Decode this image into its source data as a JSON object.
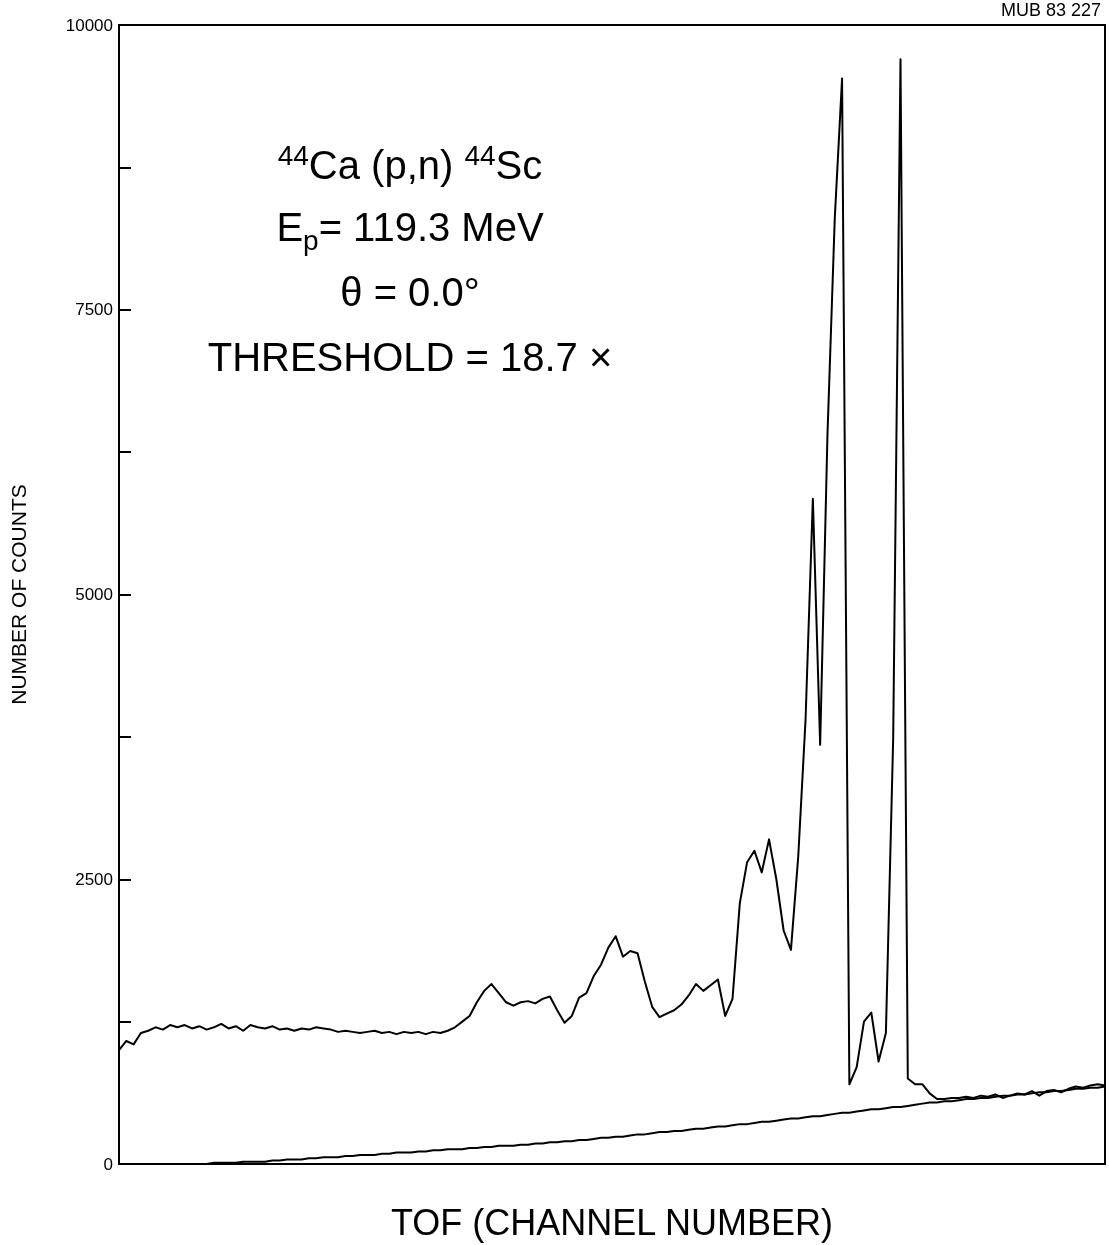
{
  "chart_data": {
    "type": "line",
    "xlabel": "TOF (CHANNEL NUMBER)",
    "ylabel": "NUMBER OF COUNTS",
    "annotations": [
      "$^{44}$Ca (p,n) $^{44}$Sc",
      "E$_{p}$= 119.3 MeV",
      "θ = 0.0°",
      "THRESHOLD = 18.7 ×",
      "MUB 83 227"
    ],
    "categories": [
      null,
      null,
      null,
      null,
      null,
      null,
      null,
      null,
      null,
      null,
      null,
      null,
      null,
      null,
      null,
      null,
      null,
      null,
      null,
      null,
      null,
      null,
      null,
      null,
      null,
      null,
      null,
      null,
      null,
      null,
      null,
      null,
      null,
      null,
      null,
      null,
      null,
      null,
      null,
      null,
      null,
      null,
      null,
      null,
      null,
      null,
      null,
      null,
      null,
      null,
      null,
      null,
      null,
      null,
      null,
      null,
      null,
      null,
      null,
      null,
      null,
      null,
      null,
      null,
      null,
      null,
      null,
      null,
      null,
      null,
      null,
      null,
      null,
      null,
      null,
      null,
      null,
      null,
      null,
      null,
      null,
      null,
      null,
      null,
      null,
      null,
      null,
      null,
      null,
      null,
      null,
      null,
      null,
      null,
      null,
      null,
      null,
      null,
      null,
      null,
      null,
      null,
      null,
      null,
      null,
      null,
      null,
      null,
      null,
      null,
      null,
      null,
      null,
      null,
      null,
      null,
      null,
      null,
      null,
      null,
      null,
      null,
      null,
      null,
      null,
      null,
      null,
      null,
      null,
      null,
      null,
      null,
      null,
      null,
      null,
      null
    ],
    "series": [
      {
        "color": "#000000",
        "values": [
          1000,
          1080,
          1050,
          1150,
          1170,
          1200,
          1180,
          1220,
          1200,
          1220,
          1190,
          1210,
          1180,
          1200,
          1230,
          1190,
          1210,
          1170,
          1220,
          1200,
          1190,
          1210,
          1180,
          1190,
          1170,
          1190,
          1180,
          1200,
          1190,
          1180,
          1160,
          1170,
          1160,
          1150,
          1160,
          1170,
          1150,
          1160,
          1140,
          1160,
          1150,
          1160,
          1140,
          1160,
          1150,
          1170,
          1200,
          1250,
          1300,
          1420,
          1520,
          1580,
          1500,
          1420,
          1390,
          1420,
          1430,
          1410,
          1450,
          1470,
          1350,
          1240,
          1300,
          1460,
          1500,
          1650,
          1750,
          1900,
          2000,
          1820,
          1870,
          1850,
          1600,
          1380,
          1290,
          1320,
          1350,
          1400,
          1480,
          1580,
          1520,
          1570,
          1620,
          1300,
          1450,
          2290,
          2650,
          2750,
          2560,
          2850,
          2500,
          2050,
          1880,
          2700,
          3900,
          5840,
          3680,
          6400,
          8300,
          9530,
          700,
          850,
          1250,
          1330,
          900,
          1150,
          3740,
          9700,
          750,
          700,
          700,
          620,
          570,
          570,
          580,
          580,
          590,
          580,
          600,
          590,
          610,
          580,
          600,
          620,
          610,
          640,
          600,
          640,
          650,
          630,
          660,
          680,
          670,
          690,
          700,
          690
        ]
      },
      {
        "color": "#000000",
        "values": [
          null,
          null,
          null,
          null,
          null,
          null,
          null,
          null,
          null,
          null,
          0,
          0,
          0,
          10,
          10,
          10,
          10,
          20,
          20,
          20,
          20,
          30,
          30,
          40,
          40,
          40,
          50,
          50,
          60,
          60,
          60,
          70,
          70,
          80,
          80,
          80,
          90,
          90,
          100,
          100,
          100,
          110,
          110,
          120,
          120,
          130,
          130,
          130,
          140,
          140,
          150,
          150,
          160,
          160,
          160,
          170,
          170,
          180,
          180,
          190,
          190,
          200,
          200,
          210,
          210,
          220,
          230,
          230,
          240,
          240,
          250,
          260,
          260,
          270,
          280,
          280,
          290,
          290,
          300,
          310,
          310,
          320,
          330,
          330,
          340,
          350,
          350,
          360,
          370,
          370,
          380,
          390,
          400,
          400,
          410,
          420,
          420,
          430,
          440,
          450,
          450,
          460,
          470,
          480,
          480,
          490,
          500,
          500,
          510,
          520,
          530,
          540,
          540,
          550,
          550,
          560,
          570,
          570,
          580,
          580,
          590,
          600,
          600,
          610,
          610,
          620,
          630,
          630,
          640,
          640,
          650,
          660,
          660,
          670,
          670,
          680
        ]
      }
    ],
    "ylim": [
      0,
      10000
    ],
    "yticks": [
      0,
      {
        "value": 1250,
        "label": null
      },
      2500,
      {
        "value": 3750,
        "label": null
      },
      5000,
      {
        "value": 6250,
        "label": null
      },
      7500,
      {
        "value": 8750,
        "label": null
      },
      10000
    ],
    "tick_labels": "y",
    "grid": false,
    "line_style": "solid"
  }
}
